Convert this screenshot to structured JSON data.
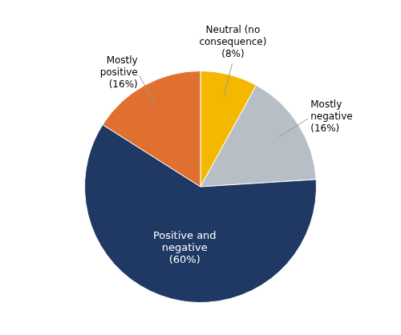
{
  "chart_data": {
    "type": "pie",
    "categories": [
      "Neutral (no\nconsequence)\n(8%)",
      "Mostly\nnegative\n(16%)",
      "Positive and\nnegative\n(60%)",
      "Mostly\npositive\n(16%)"
    ],
    "values": [
      8,
      16,
      60,
      16
    ],
    "colors": [
      "#F5B800",
      "#B8BEC6",
      "#1F3864",
      "#E07030"
    ]
  }
}
